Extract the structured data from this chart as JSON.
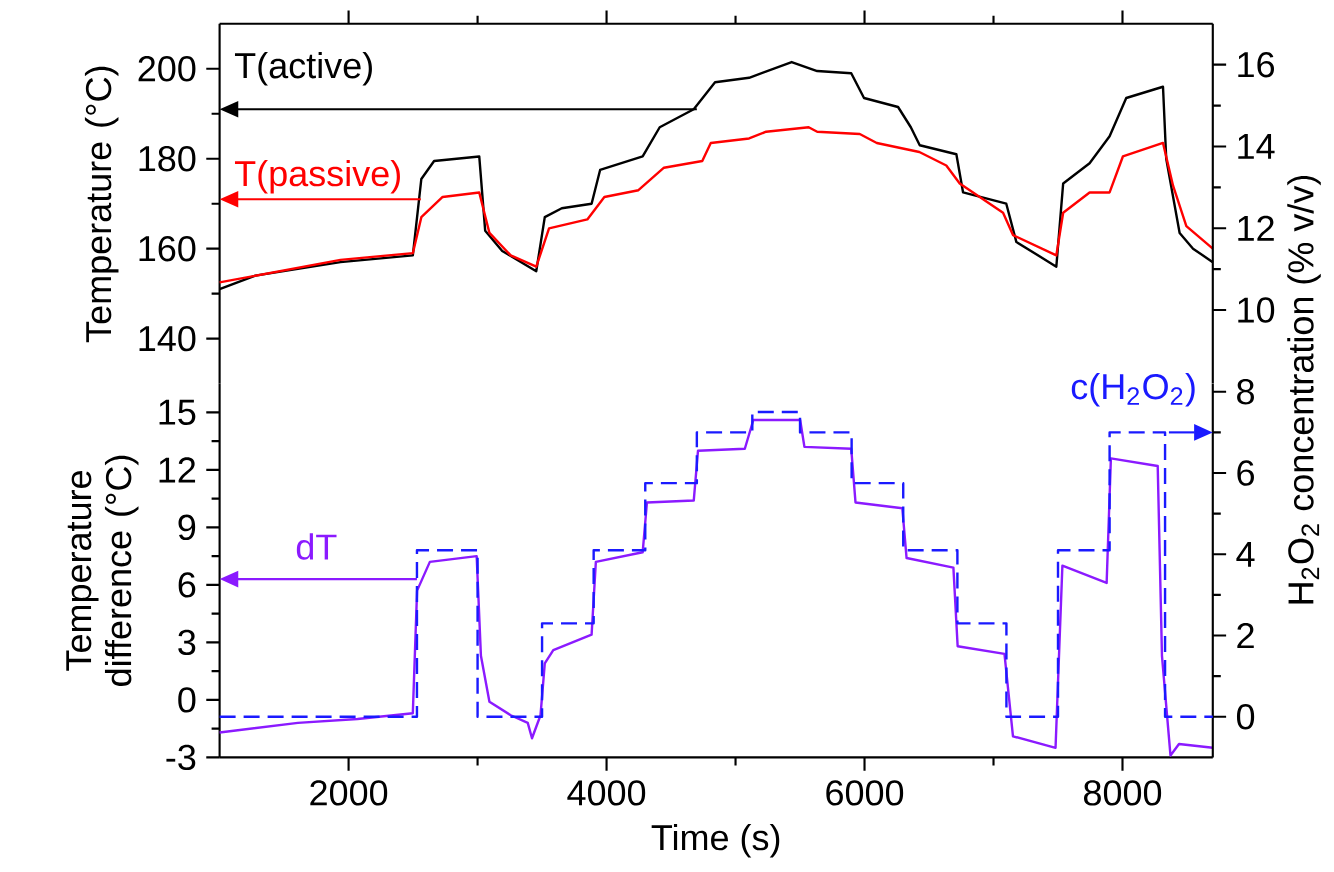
{
  "chart_data": [
    {
      "type": "line",
      "ylabel": "Temperature (°C)",
      "xlim": [
        1000,
        8700
      ],
      "xticks": [
        2000,
        4000,
        6000,
        8000
      ],
      "ylim": [
        130,
        210
      ],
      "yticks": [
        140,
        160,
        180,
        200
      ],
      "y2lim": [
        8.2,
        17
      ],
      "y2ticks": [
        10,
        12,
        14,
        16
      ],
      "tick_labels": "y",
      "legend": "top left",
      "series": [
        {
          "name": "T(active)",
          "color": "#000000",
          "x": [
            1000,
            1277,
            1937,
            2498,
            2564,
            2663,
            3013,
            3059,
            3191,
            3455,
            3521,
            3653,
            3884,
            3950,
            4280,
            4412,
            4676,
            4841,
            5105,
            5435,
            5633,
            5897,
            5996,
            6260,
            6359,
            6428,
            6712,
            6764,
            7099,
            7177,
            7487,
            7540,
            7745,
            7900,
            8029,
            8314,
            8339,
            8443,
            8547,
            8700
          ],
          "values": [
            151,
            154,
            157,
            158.5,
            175.5,
            179.5,
            180.5,
            164,
            159.5,
            155,
            167,
            169,
            170,
            177.5,
            180.5,
            187,
            191,
            197,
            198,
            201.5,
            199.5,
            199,
            193.5,
            191.5,
            187,
            183,
            181,
            172.5,
            170,
            161.5,
            156,
            174.5,
            179,
            185,
            193.5,
            196,
            180,
            163.5,
            160,
            157
          ]
        },
        {
          "name": "T(passive)",
          "color": "#ff0000",
          "x": [
            1000,
            1937,
            2498,
            2564,
            2729,
            3013,
            3092,
            3257,
            3455,
            3554,
            3851,
            3983,
            4247,
            4445,
            4742,
            4808,
            5105,
            5237,
            5567,
            5633,
            5963,
            6095,
            6425,
            6634,
            6738,
            7074,
            7152,
            7487,
            7540,
            7745,
            7900,
            8003,
            8314,
            8392,
            8495,
            8700
          ],
          "values": [
            152.5,
            157.5,
            159,
            167,
            171.5,
            172.5,
            163.5,
            158.5,
            156,
            164.5,
            166.5,
            171.5,
            173,
            178,
            179.5,
            183.5,
            184.5,
            186,
            187,
            186,
            185.5,
            183.5,
            181.5,
            178.5,
            174.5,
            168,
            163,
            158.5,
            168,
            172.5,
            172.5,
            180.5,
            183.5,
            174,
            165,
            160
          ]
        }
      ]
    },
    {
      "type": "line",
      "xlabel": "Time (s)",
      "ylabel": "Temperature difference (°C)",
      "y2label": "H$_{2}$O$_{2}$ concentration (% v/v)",
      "xlim": [
        1000,
        8700
      ],
      "xticks": [
        2000,
        4000,
        6000,
        8000
      ],
      "ylim": [
        -3,
        16.5
      ],
      "yticks": [
        -3,
        0,
        3,
        6,
        9,
        12,
        15
      ],
      "y2lim": [
        -1,
        8.2
      ],
      "y2ticks": [
        0,
        2,
        4,
        6,
        8
      ],
      "series": [
        {
          "name": "dT",
          "color": "#8b1aff",
          "x": [
            1000,
            1607,
            2069,
            2498,
            2531,
            2630,
            2993,
            3026,
            3092,
            3257,
            3389,
            3422,
            3488,
            3521,
            3587,
            3884,
            3917,
            4280,
            4313,
            4676,
            4709,
            5072,
            5138,
            5501,
            5534,
            5897,
            5930,
            6293,
            6326,
            6689,
            6722,
            7085,
            7151,
            7481,
            7534,
            7877,
            7910,
            8273,
            8306,
            8372,
            8438,
            8700
          ],
          "values": [
            -1.7,
            -1.2,
            -1,
            -0.7,
            5.7,
            7.2,
            7.5,
            2.3,
            -0.1,
            -0.8,
            -1.2,
            -2,
            -0.8,
            1.9,
            2.6,
            3.4,
            7.2,
            7.7,
            10.3,
            10.4,
            13,
            13.1,
            14.6,
            14.6,
            13.2,
            13.1,
            10.3,
            10,
            7.4,
            6.9,
            2.8,
            2.4,
            -1.9,
            -2.5,
            7,
            6.1,
            12.6,
            12.2,
            2.3,
            -2.9,
            -2.3,
            -2.5
          ]
        },
        {
          "name": "c(H$_{2}$O$_{2}$)",
          "type": "step",
          "axis": "y2",
          "line_style": "dashed",
          "color": "#1a1aff",
          "x": [
            1000,
            2530,
            3000,
            3500,
            3900,
            4300,
            4700,
            5130,
            5500,
            5900,
            6300,
            6720,
            7100,
            7500,
            7900,
            8330,
            8700
          ],
          "values": [
            0,
            4.1,
            0,
            2.3,
            4.1,
            5.75,
            7,
            7.5,
            7,
            5.75,
            4.1,
            2.3,
            0,
            4.1,
            7,
            0,
            0
          ]
        }
      ]
    }
  ]
}
